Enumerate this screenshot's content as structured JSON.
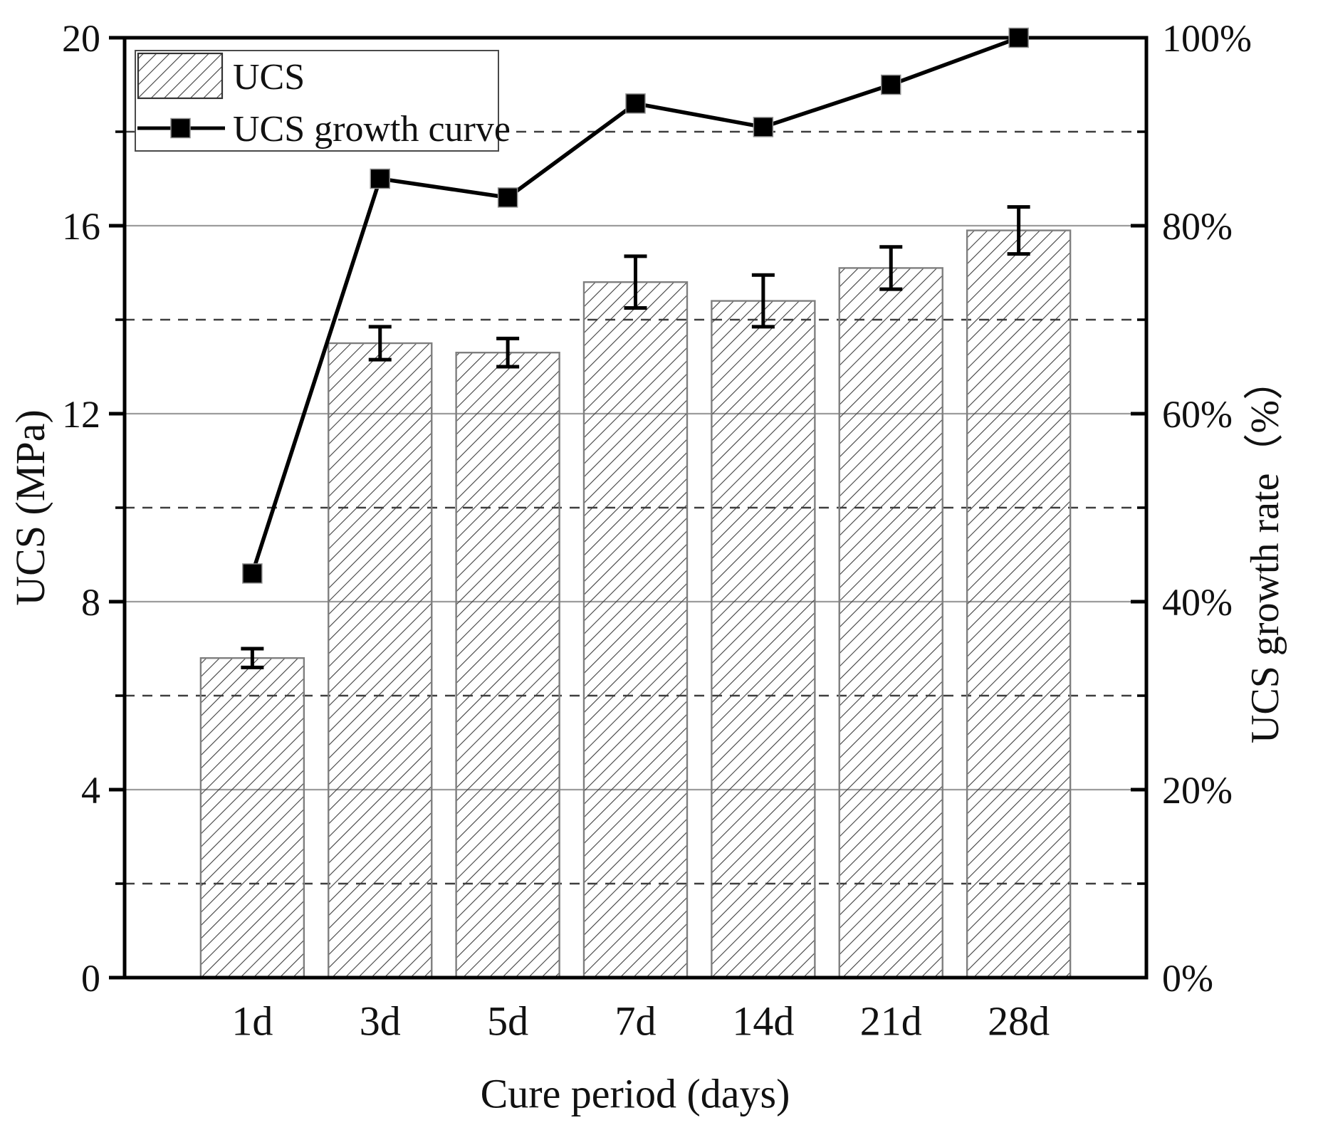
{
  "page": {
    "background": "#ffffff"
  },
  "chart_data": {
    "type": "bar+line",
    "title": "",
    "categories": [
      "1d",
      "3d",
      "5d",
      "7d",
      "14d",
      "21d",
      "28d"
    ],
    "xlabel": "Cure period (days)",
    "left_axis": {
      "label": "UCS (MPa)",
      "min": 0,
      "max": 20,
      "major_ticks": [
        0,
        4,
        8,
        12,
        16,
        20
      ],
      "major_tick_labels": [
        "0",
        "4",
        "8",
        "12",
        "16",
        "20"
      ],
      "minor_ticks": [
        2,
        6,
        10,
        14,
        18
      ],
      "solid_gridlines_at": [
        4,
        8,
        12,
        16
      ],
      "dashed_gridlines_at": [
        2,
        6,
        10,
        14,
        18
      ]
    },
    "right_axis": {
      "label": "UCS growth rate（%）",
      "min": 0,
      "max": 100,
      "major_ticks": [
        0,
        20,
        40,
        60,
        80,
        100
      ],
      "major_tick_labels": [
        "0%",
        "20%",
        "40%",
        "60%",
        "80%",
        "100%"
      ],
      "minor_ticks": [
        10,
        30,
        50,
        70,
        90
      ]
    },
    "series": [
      {
        "name": "UCS",
        "type": "bar",
        "axis": "left",
        "unit": "MPa",
        "fill": "diagonal-hatch",
        "values": [
          6.8,
          13.5,
          13.3,
          14.8,
          14.4,
          15.1,
          15.9
        ],
        "error_bars": [
          0.2,
          0.35,
          0.3,
          0.55,
          0.55,
          0.45,
          0.5
        ]
      },
      {
        "name": "UCS growth curve",
        "type": "line",
        "axis": "right",
        "unit": "%",
        "marker": "filled-square",
        "values": [
          43,
          85,
          83,
          93,
          90.5,
          95,
          100
        ]
      }
    ],
    "legend": {
      "position": "top-left",
      "items": [
        {
          "label": "UCS",
          "swatch": "hatched-rectangle"
        },
        {
          "label": "UCS growth curve",
          "swatch": "line-with-square-marker"
        }
      ]
    },
    "colors": {
      "series_line": "#000000",
      "marker_fill": "#000000",
      "bar_hatch": "#3f3f3f",
      "bar_border": "#7f7f7f",
      "solid_grid": "#9c9c9c",
      "dashed_grid": "#3e3e3e",
      "frame": "#000000",
      "text": "#111111",
      "background": "#ffffff"
    }
  }
}
